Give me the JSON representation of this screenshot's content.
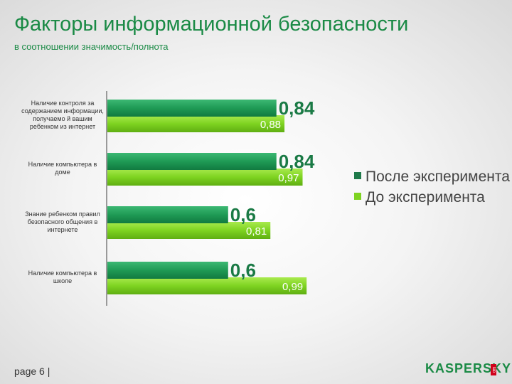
{
  "header": {
    "title": "Факторы информационной безопасности",
    "subtitle": "в соотношении значимость/полнота"
  },
  "chart_data": {
    "type": "bar",
    "orientation": "horizontal",
    "categories": [
      "Наличие контроля за содержанием информации, получаемо й вашим ребенком из интернет",
      "Наличие компьютера в доме",
      "Знание ребенком правил безопасного общения в интернете",
      "Наличие компьютера в школе"
    ],
    "series": [
      {
        "name": "После эксперимента",
        "values": [
          0.84,
          0.84,
          0.6,
          0.6
        ],
        "labels": [
          "0,84",
          "0,84",
          "0,6",
          "0,6"
        ],
        "color": "#1f9a55"
      },
      {
        "name": "До эксперимента",
        "values": [
          0.88,
          0.97,
          0.81,
          0.99
        ],
        "labels": [
          "0,88",
          "0,97",
          "0,81",
          "0,99"
        ],
        "color": "#7ed321"
      }
    ],
    "xlim": [
      0,
      1
    ],
    "legend": "right",
    "grid": false
  },
  "footer": {
    "page_label": "page 6 |",
    "logo_text": "KASPERSKY",
    "logo_lab": "lab"
  }
}
